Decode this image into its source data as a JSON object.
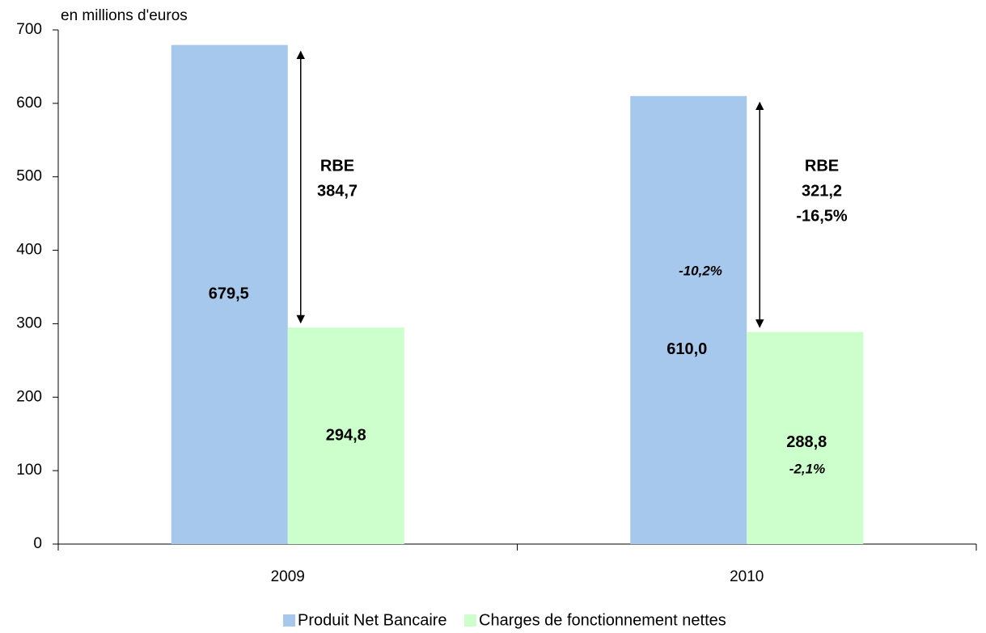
{
  "chart_data": {
    "type": "bar",
    "y_axis_label": "en millions d'euros",
    "categories": [
      "2009",
      "2010"
    ],
    "series": [
      {
        "name": "Produit Net Bancaire",
        "color": "#a6c8ed",
        "values": [
          679.5,
          610.0
        ],
        "value_labels": [
          "679,5",
          "610,0"
        ]
      },
      {
        "name": "Charges de fonctionnement nettes",
        "color": "#ccffcc",
        "values": [
          294.8,
          288.8
        ],
        "value_labels": [
          "294,8",
          "288,8"
        ]
      }
    ],
    "ylim": [
      0,
      700
    ],
    "yticks": [
      0,
      100,
      200,
      300,
      400,
      500,
      600,
      700
    ],
    "annotations": [
      "RBE",
      "384,7",
      "RBE",
      "321,2",
      "-16,5%",
      "-10,2%",
      "-2,1%"
    ]
  }
}
